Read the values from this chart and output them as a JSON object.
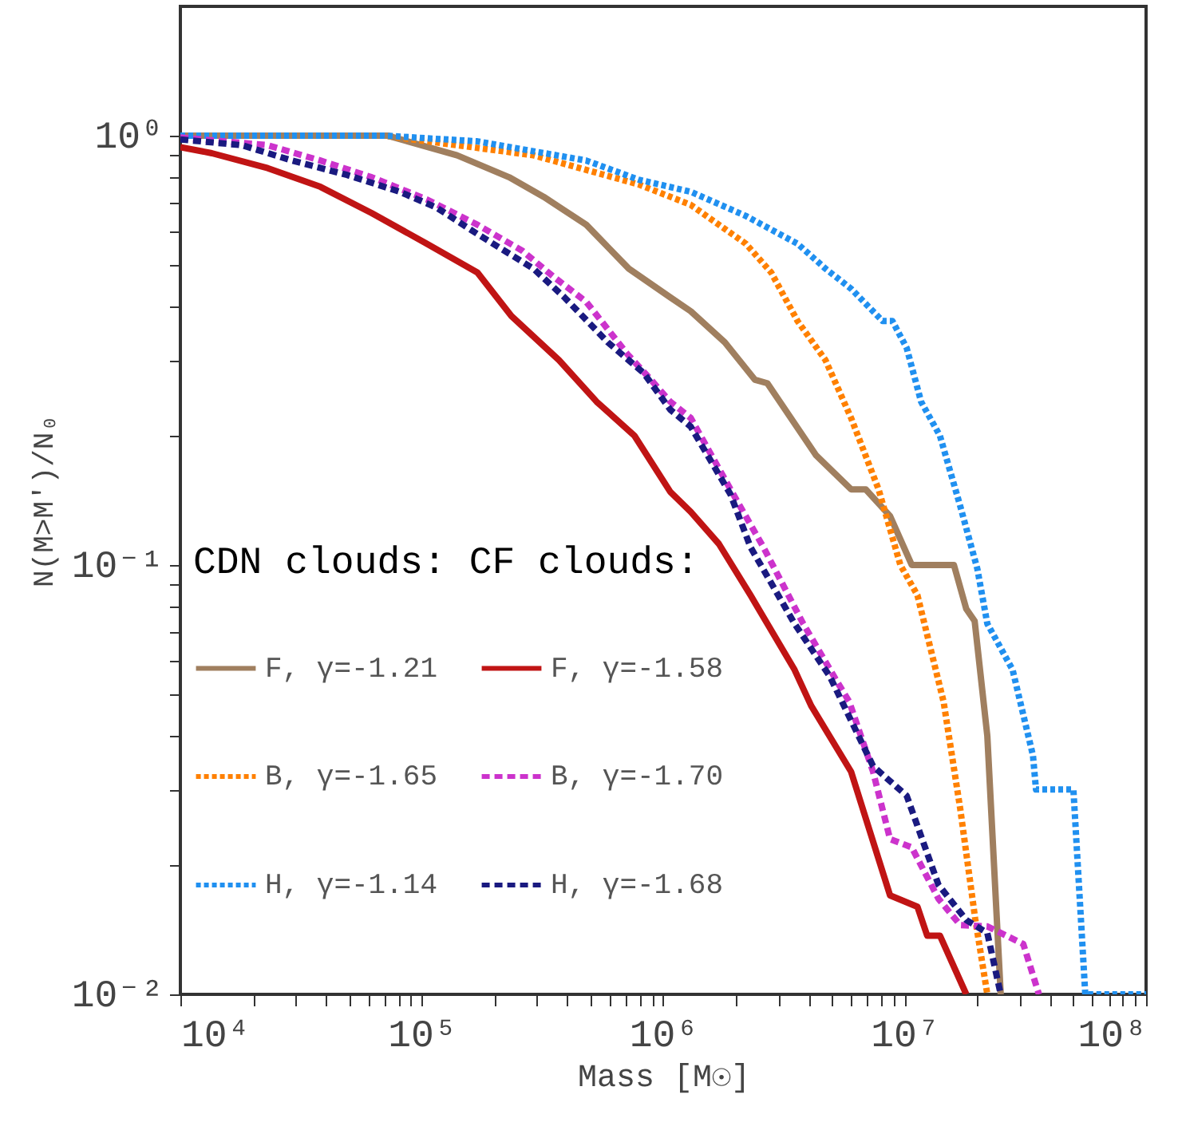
{
  "chart_data": {
    "type": "line",
    "xlabel": "Mass [M☉]",
    "ylabel": "N(M>M′)/N₀",
    "legend_title": "CDN clouds: CF clouds:",
    "log": "xy",
    "grid": false,
    "legend": "bottom left",
    "xlim": [
      10000,
      100000000
    ],
    "ylim": [
      0.01,
      2
    ],
    "xticks": [
      {
        "value": 10000,
        "label": "10⁴"
      },
      {
        "value": 20000,
        "label": null
      },
      {
        "value": 30000,
        "label": null
      },
      {
        "value": 40000,
        "label": null
      },
      {
        "value": 50000,
        "label": null
      },
      {
        "value": 60000,
        "label": null
      },
      {
        "value": 70000,
        "label": null
      },
      {
        "value": 80000,
        "label": null
      },
      {
        "value": 90000,
        "label": null
      },
      {
        "value": 100000,
        "label": "10⁵"
      },
      {
        "value": 200000,
        "label": null
      },
      {
        "value": 300000,
        "label": null
      },
      {
        "value": 400000,
        "label": null
      },
      {
        "value": 500000,
        "label": null
      },
      {
        "value": 600000,
        "label": null
      },
      {
        "value": 700000,
        "label": null
      },
      {
        "value": 800000,
        "label": null
      },
      {
        "value": 900000,
        "label": null
      },
      {
        "value": 1000000,
        "label": "10⁶"
      },
      {
        "value": 2000000,
        "label": null
      },
      {
        "value": 3000000,
        "label": null
      },
      {
        "value": 4000000,
        "label": null
      },
      {
        "value": 5000000,
        "label": null
      },
      {
        "value": 6000000,
        "label": null
      },
      {
        "value": 7000000,
        "label": null
      },
      {
        "value": 8000000,
        "label": null
      },
      {
        "value": 9000000,
        "label": null
      },
      {
        "value": 10000000,
        "label": "10⁷"
      },
      {
        "value": 20000000,
        "label": null
      },
      {
        "value": 30000000,
        "label": null
      },
      {
        "value": 40000000,
        "label": null
      },
      {
        "value": 50000000,
        "label": null
      },
      {
        "value": 60000000,
        "label": null
      },
      {
        "value": 70000000,
        "label": null
      },
      {
        "value": 80000000,
        "label": null
      },
      {
        "value": 90000000,
        "label": null
      },
      {
        "value": 100000000,
        "label": "10⁸"
      }
    ],
    "yticks": [
      {
        "value": 0.01,
        "label": "10⁻²"
      },
      {
        "value": 0.02,
        "label": null
      },
      {
        "value": 0.03,
        "label": null
      },
      {
        "value": 0.04,
        "label": null
      },
      {
        "value": 0.05,
        "label": null
      },
      {
        "value": 0.06,
        "label": null
      },
      {
        "value": 0.07,
        "label": null
      },
      {
        "value": 0.08,
        "label": null
      },
      {
        "value": 0.09,
        "label": null
      },
      {
        "value": 0.1,
        "label": "10⁻¹"
      },
      {
        "value": 0.2,
        "label": null
      },
      {
        "value": 0.3,
        "label": null
      },
      {
        "value": 0.4,
        "label": null
      },
      {
        "value": 0.5,
        "label": null
      },
      {
        "value": 0.6,
        "label": null
      },
      {
        "value": 0.7,
        "label": null
      },
      {
        "value": 0.8,
        "label": null
      },
      {
        "value": 0.9,
        "label": null
      },
      {
        "value": 1,
        "label": "10⁰"
      }
    ],
    "series": [
      {
        "name": "F, γ=-1.21",
        "color": "#a07f5f",
        "line_style": "solid",
        "x": [
          10000,
          72000,
          140000,
          230000,
          320000,
          480000,
          720000,
          1070000,
          1300000,
          1800000,
          2400000,
          2700000,
          4300000,
          6000000,
          6900000,
          8700000,
          10700000,
          16000000,
          18000000,
          19500000,
          22000000,
          25000000
        ],
        "values": [
          1,
          1,
          0.9,
          0.8,
          0.72,
          0.62,
          0.49,
          0.42,
          0.39,
          0.33,
          0.27,
          0.265,
          0.18,
          0.15,
          0.15,
          0.13,
          0.1,
          0.1,
          0.079,
          0.074,
          0.04,
          0.01
        ]
      },
      {
        "name": "B, γ=-1.65",
        "color": "#ff8000",
        "line_style": "dotted",
        "x": [
          10000,
          70000,
          290000,
          790000,
          1300000,
          2200000,
          2800000,
          3600000,
          4700000,
          6000000,
          7800000,
          9600000,
          11300000,
          14500000,
          17000000,
          19600000,
          22000000
        ],
        "values": [
          1,
          1,
          0.9,
          0.77,
          0.69,
          0.56,
          0.48,
          0.37,
          0.3,
          0.22,
          0.15,
          0.1,
          0.085,
          0.048,
          0.027,
          0.015,
          0.01
        ]
      },
      {
        "name": "H, γ=-1.14",
        "color": "#2090f0",
        "line_style": "dotted",
        "x": [
          10000,
          70000,
          170000,
          480000,
          790000,
          1300000,
          2200000,
          3600000,
          4700000,
          6000000,
          8100000,
          8900000,
          10200000,
          11700000,
          14000000,
          17000000,
          20000000,
          22000000,
          28000000,
          34000000,
          35000000,
          50000000,
          56000000,
          100000000
        ],
        "values": [
          1,
          1,
          0.97,
          0.875,
          0.79,
          0.74,
          0.65,
          0.56,
          0.49,
          0.44,
          0.37,
          0.37,
          0.32,
          0.24,
          0.2,
          0.137,
          0.098,
          0.073,
          0.057,
          0.036,
          0.03,
          0.03,
          0.01,
          0.01
        ]
      },
      {
        "name": "F, γ=-1.58",
        "color": "#c01414",
        "line_style": "solid",
        "x": [
          10000,
          13500,
          23000,
          38000,
          62000,
          105000,
          170000,
          235000,
          370000,
          530000,
          760000,
          1070000,
          1300000,
          1700000,
          2300000,
          3500000,
          4100000,
          6000000,
          8700000,
          11300000,
          12400000,
          14000000,
          18000000
        ],
        "values": [
          0.94,
          0.91,
          0.84,
          0.76,
          0.66,
          0.56,
          0.48,
          0.38,
          0.3,
          0.24,
          0.2,
          0.148,
          0.133,
          0.112,
          0.085,
          0.057,
          0.047,
          0.033,
          0.017,
          0.016,
          0.0137,
          0.0137,
          0.01
        ]
      },
      {
        "name": "B, γ=-1.70",
        "color": "#cc33cc",
        "line_style": "dashed",
        "x": [
          10000,
          23000,
          38000,
          62000,
          105000,
          170000,
          260000,
          350000,
          480000,
          710000,
          890000,
          1070000,
          1300000,
          1900000,
          2600000,
          3800000,
          5200000,
          5900000,
          7400000,
          8700000,
          10700000,
          13800000,
          17000000,
          22000000,
          31000000,
          36000000
        ],
        "values": [
          0.99,
          0.95,
          0.875,
          0.8,
          0.71,
          0.62,
          0.54,
          0.47,
          0.41,
          0.31,
          0.27,
          0.24,
          0.22,
          0.15,
          0.11,
          0.073,
          0.054,
          0.048,
          0.033,
          0.023,
          0.022,
          0.0167,
          0.0145,
          0.0144,
          0.0131,
          0.01
        ]
      },
      {
        "name": "H, γ=-1.68",
        "color": "#1a1a80",
        "line_style": "dashed",
        "x": [
          10000,
          18000,
          29000,
          49000,
          81000,
          115000,
          170000,
          290000,
          390000,
          590000,
          830000,
          1070000,
          1300000,
          1900000,
          2300000,
          3500000,
          4900000,
          7400000,
          10200000,
          13800000,
          18000000,
          22000000,
          25000000
        ],
        "values": [
          0.98,
          0.95,
          0.875,
          0.81,
          0.74,
          0.68,
          0.59,
          0.49,
          0.42,
          0.33,
          0.28,
          0.23,
          0.21,
          0.146,
          0.11,
          0.073,
          0.055,
          0.034,
          0.029,
          0.018,
          0.0149,
          0.0139,
          0.01
        ]
      }
    ]
  }
}
